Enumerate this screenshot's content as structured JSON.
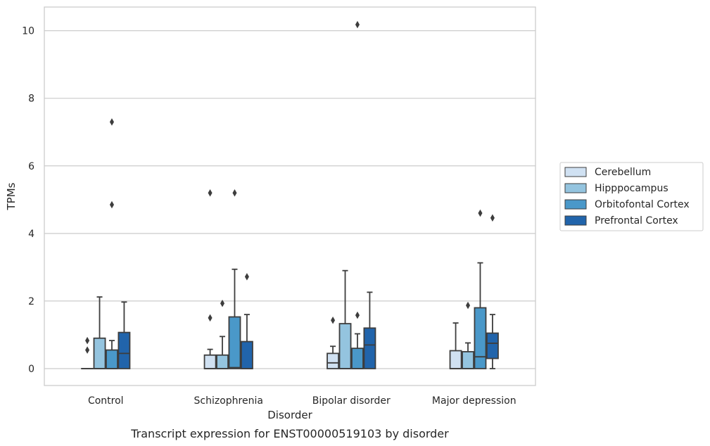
{
  "caption": "Transcript expression for ENST00000519103 by disorder",
  "chart_data": {
    "type": "box",
    "xlabel": "Disorder",
    "ylabel": "TPMs",
    "ylim": [
      -0.5,
      10.7
    ],
    "yticks": [
      0,
      2,
      4,
      6,
      8,
      10
    ],
    "ytick_labels": [
      "0",
      "2",
      "4",
      "6",
      "8",
      "10"
    ],
    "grid": "horizontal",
    "legend_position": "right-center",
    "categories": [
      "Control",
      "Schizophrenia",
      "Bipolar disorder",
      "Major depression"
    ],
    "series": [
      {
        "name": "Cerebellum",
        "color": "#d0e1f2",
        "boxes": [
          {
            "whisker_low": 0,
            "q1": 0,
            "median": 0,
            "q3": 0,
            "whisker_high": 0,
            "outliers": [
              0.55,
              0.83
            ]
          },
          {
            "whisker_low": 0,
            "q1": 0,
            "median": 0,
            "q3": 0.4,
            "whisker_high": 0.57,
            "outliers": [
              1.5,
              5.2
            ]
          },
          {
            "whisker_low": 0,
            "q1": 0,
            "median": 0.17,
            "q3": 0.45,
            "whisker_high": 0.66,
            "outliers": [
              1.43
            ]
          },
          {
            "whisker_low": 0,
            "q1": 0,
            "median": 0,
            "q3": 0.53,
            "whisker_high": 1.35,
            "outliers": []
          }
        ]
      },
      {
        "name": "Hipppocampus",
        "color": "#94c4df",
        "boxes": [
          {
            "whisker_low": 0,
            "q1": 0,
            "median": 0,
            "q3": 0.9,
            "whisker_high": 2.12,
            "outliers": []
          },
          {
            "whisker_low": 0,
            "q1": 0,
            "median": 0,
            "q3": 0.4,
            "whisker_high": 0.95,
            "outliers": [
              1.93
            ]
          },
          {
            "whisker_low": 0,
            "q1": 0,
            "median": 0,
            "q3": 1.33,
            "whisker_high": 2.9,
            "outliers": []
          },
          {
            "whisker_low": 0,
            "q1": 0,
            "median": 0,
            "q3": 0.5,
            "whisker_high": 0.76,
            "outliers": [
              1.87
            ]
          }
        ]
      },
      {
        "name": "Orbitofontal Cortex",
        "color": "#4a98c9",
        "boxes": [
          {
            "whisker_low": 0,
            "q1": 0,
            "median": 0,
            "q3": 0.55,
            "whisker_high": 0.83,
            "outliers": [
              4.85,
              7.3
            ]
          },
          {
            "whisker_low": 0,
            "q1": 0,
            "median": 0.03,
            "q3": 1.53,
            "whisker_high": 2.94,
            "outliers": [
              5.2
            ]
          },
          {
            "whisker_low": 0,
            "q1": 0,
            "median": 0,
            "q3": 0.6,
            "whisker_high": 1.03,
            "outliers": [
              1.58,
              10.18
            ]
          },
          {
            "whisker_low": 0,
            "q1": 0,
            "median": 0.35,
            "q3": 1.8,
            "whisker_high": 3.13,
            "outliers": [
              4.6
            ]
          }
        ]
      },
      {
        "name": "Prefrontal Cortex",
        "color": "#2164ab",
        "boxes": [
          {
            "whisker_low": 0,
            "q1": 0,
            "median": 0.45,
            "q3": 1.07,
            "whisker_high": 1.97,
            "outliers": []
          },
          {
            "whisker_low": 0,
            "q1": 0,
            "median": 0,
            "q3": 0.8,
            "whisker_high": 1.6,
            "outliers": [
              2.72
            ]
          },
          {
            "whisker_low": 0,
            "q1": 0,
            "median": 0.7,
            "q3": 1.2,
            "whisker_high": 2.26,
            "outliers": []
          },
          {
            "whisker_low": 0,
            "q1": 0.3,
            "median": 0.75,
            "q3": 1.05,
            "whisker_high": 1.6,
            "outliers": [
              4.46
            ]
          }
        ]
      }
    ]
  }
}
